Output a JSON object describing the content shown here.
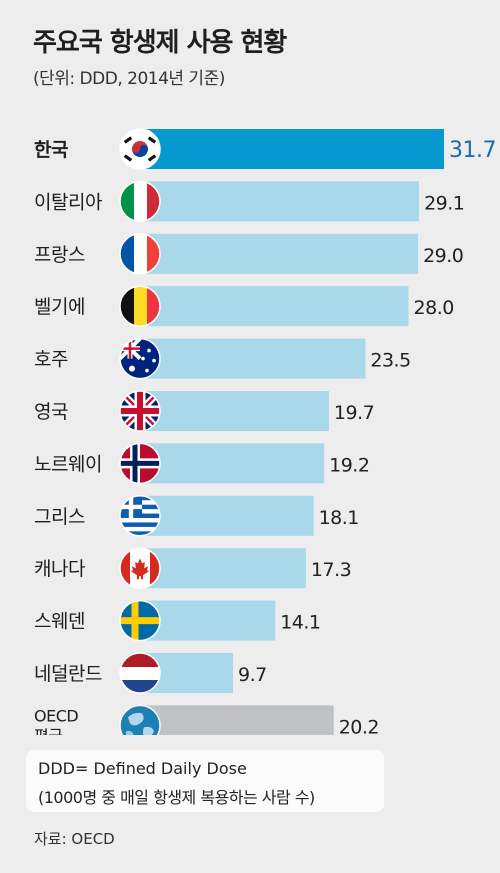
{
  "title": "주요국 항생제 사용 현황",
  "subtitle": "(단위: DDD, 2014년 기준)",
  "chart_data": {
    "type": "bar",
    "orientation": "horizontal",
    "title": "주요국 항생제 사용 현황",
    "subtitle": "(단위: DDD, 2014년 기준)",
    "categories": [
      "한국",
      "이탈리아",
      "프랑스",
      "벨기에",
      "호주",
      "영국",
      "노르웨이",
      "그리스",
      "캐나다",
      "스웨덴",
      "네덜란드",
      "OECD 평균"
    ],
    "category_lines": [
      [
        "한국"
      ],
      [
        "이탈리아"
      ],
      [
        "프랑스"
      ],
      [
        "벨기에"
      ],
      [
        "호주"
      ],
      [
        "영국"
      ],
      [
        "노르웨이"
      ],
      [
        "그리스"
      ],
      [
        "캐나다"
      ],
      [
        "스웨덴"
      ],
      [
        "네덜란드"
      ],
      [
        "OECD",
        "평균"
      ]
    ],
    "values": [
      31.7,
      29.1,
      29.0,
      28.0,
      23.5,
      19.7,
      19.2,
      18.1,
      17.3,
      14.1,
      9.7,
      20.2
    ],
    "value_labels": [
      "31.7",
      "29.1",
      "29.0",
      "28.0",
      "23.5",
      "19.7",
      "19.2",
      "18.1",
      "17.3",
      "14.1",
      "9.7",
      "20.2"
    ],
    "flags": [
      "flag-korea",
      "flag-italy",
      "flag-france",
      "flag-belgium",
      "flag-australia",
      "flag-uk",
      "flag-norway",
      "flag-greece",
      "flag-canada",
      "flag-sweden",
      "flag-netherlands",
      "globe-oecd"
    ],
    "xlim": [
      0,
      31.7
    ],
    "grid": false,
    "colors": {
      "highlight": "#0599cf",
      "default": "#a8d8ea",
      "average": "#bfc2c4",
      "highlight_label": "#1a6ea8",
      "default_label": "#222222"
    }
  },
  "legend": {
    "line1": "DDD= Defined Daily Dose",
    "line2": "(1000명 중 매일 항생제 복용하는 사람 수)"
  },
  "source": "자료: OECD"
}
